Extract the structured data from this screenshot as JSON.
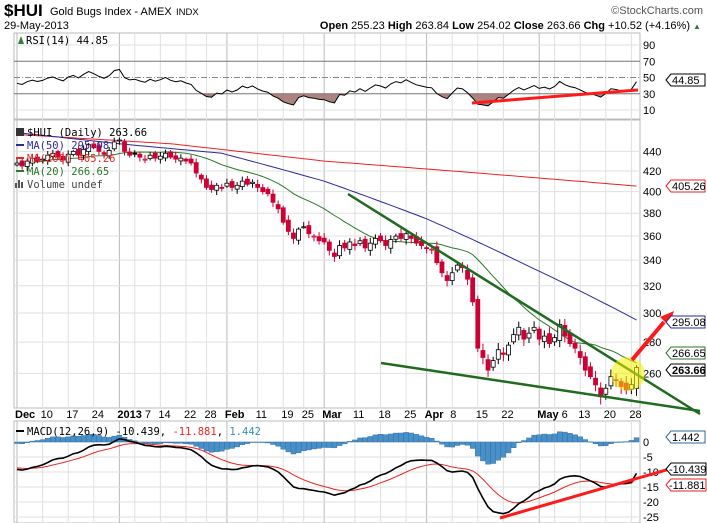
{
  "header": {
    "symbol": "$HUI",
    "name": "Gold Bugs Index - AMEX",
    "exchange": "INDX",
    "watermark": "©StockCharts.com",
    "date": "29-May-2013",
    "open_label": "Open",
    "open": "255.23",
    "high_label": "High",
    "high": "263.84",
    "low_label": "Low",
    "low": "254.02",
    "close_label": "Close",
    "close": "263.66",
    "chg_label": "Chg",
    "chg": "+10.52 (+4.16%)",
    "chg_arrow": "▲"
  },
  "rsi_panel": {
    "legend": "RSI(14) 44.85",
    "last_tag": "44.85",
    "ticks": [
      "90",
      "70",
      "50",
      "30",
      "10"
    ]
  },
  "price_panel": {
    "legend": {
      "main": "$HUI (Daily) 263.66",
      "ma50": "MA(50) 295.08",
      "ma200": "MA(200) 405.26",
      "ma20": "MA(20) 266.65",
      "volume": "Volume undef"
    },
    "tags": {
      "ma200": "405.26",
      "ma50": "295.08",
      "ma20": "266.65",
      "close": "263.66"
    },
    "ticks": [
      "440",
      "420",
      "400",
      "380",
      "360",
      "340",
      "320",
      "300",
      "280",
      "260"
    ]
  },
  "macd_panel": {
    "legend_name": "MACD(12,26,9)",
    "legend_macd": "-10.439",
    "legend_signal": "-11.881",
    "legend_hist": "1.442",
    "tags": {
      "hist": "1.442",
      "macd": "-10.439",
      "signal": "-11.881"
    },
    "ticks": [
      "0",
      "-5",
      "-10",
      "-15",
      "-20",
      "-25"
    ]
  },
  "colors": {
    "up": "#000000",
    "down": "#cc0033",
    "ma50": "#2a2a9a",
    "ma200": "#ee2222",
    "ma20": "#2a7a2a",
    "hist": "#4a90c8",
    "annot_red": "#ff1a1a",
    "annot_green": "#1f6b1f",
    "highlight": "#f5f000"
  },
  "chart_data": {
    "type": "candlestick",
    "title": "$HUI Gold Bugs Index - AMEX INDX",
    "date_range": [
      "2012-12-03",
      "2013-05-29"
    ],
    "yscale": "log",
    "ylim": [
      240,
      460
    ],
    "x_ticks": [
      {
        "i": 0,
        "label": "Dec",
        "bold": true
      },
      {
        "i": 5,
        "label": "10"
      },
      {
        "i": 10,
        "label": "17"
      },
      {
        "i": 15,
        "label": "24"
      },
      {
        "i": 20,
        "label": "2013",
        "bold": true
      },
      {
        "i": 23,
        "label": "7"
      },
      {
        "i": 28,
        "label": "14"
      },
      {
        "i": 33,
        "label": "22"
      },
      {
        "i": 37,
        "label": "28"
      },
      {
        "i": 41,
        "label": "Feb",
        "bold": true
      },
      {
        "i": 47,
        "label": "11"
      },
      {
        "i": 52,
        "label": "19"
      },
      {
        "i": 56,
        "label": "25"
      },
      {
        "i": 60,
        "label": "Mar",
        "bold": true
      },
      {
        "i": 66,
        "label": "11"
      },
      {
        "i": 71,
        "label": "18"
      },
      {
        "i": 76,
        "label": "25"
      },
      {
        "i": 80,
        "label": "Apr",
        "bold": true
      },
      {
        "i": 85,
        "label": "8"
      },
      {
        "i": 90,
        "label": "15"
      },
      {
        "i": 95,
        "label": "22"
      },
      {
        "i": 102,
        "label": "May",
        "bold": true
      },
      {
        "i": 105,
        "label": "6"
      },
      {
        "i": 110,
        "label": "13"
      },
      {
        "i": 115,
        "label": "20"
      },
      {
        "i": 120,
        "label": "28"
      }
    ],
    "closes": [
      428,
      425,
      430,
      433,
      430,
      432,
      436,
      438,
      434,
      431,
      437,
      440,
      436,
      442,
      447,
      444,
      440,
      437,
      441,
      450,
      452,
      440,
      436,
      437,
      434,
      432,
      436,
      433,
      435,
      438,
      434,
      432,
      433,
      430,
      428,
      418,
      412,
      404,
      402,
      406,
      404,
      408,
      404,
      406,
      410,
      407,
      409,
      404,
      400,
      398,
      390,
      384,
      372,
      364,
      358,
      366,
      368,
      362,
      360,
      356,
      355,
      348,
      343,
      352,
      350,
      355,
      352,
      356,
      350,
      354,
      358,
      356,
      352,
      357,
      360,
      358,
      362,
      358,
      354,
      352,
      350,
      349,
      338,
      330,
      324,
      330,
      336,
      334,
      325,
      308,
      276,
      270,
      262,
      268,
      275,
      272,
      278,
      285,
      290,
      282,
      286,
      290,
      282,
      284,
      279,
      283,
      292,
      284,
      279,
      276,
      270,
      262,
      258,
      253,
      246,
      251,
      258,
      256,
      252,
      250,
      253.14,
      263.66
    ],
    "ma50_points": [
      [
        0,
        460
      ],
      [
        20,
        448
      ],
      [
        40,
        438
      ],
      [
        60,
        410
      ],
      [
        80,
        375
      ],
      [
        100,
        335
      ],
      [
        121,
        295.08
      ]
    ],
    "ma200_points": [
      [
        0,
        458
      ],
      [
        30,
        448
      ],
      [
        60,
        430
      ],
      [
        90,
        418
      ],
      [
        121,
        405.26
      ]
    ],
    "ma20_last": 266.65,
    "rsi_last": 44.85,
    "macd_last": {
      "macd": -10.439,
      "signal": -11.881,
      "hist": 1.442
    },
    "rsi_ylim": [
      0,
      100
    ],
    "macd_ylim": [
      -27,
      7
    ]
  }
}
